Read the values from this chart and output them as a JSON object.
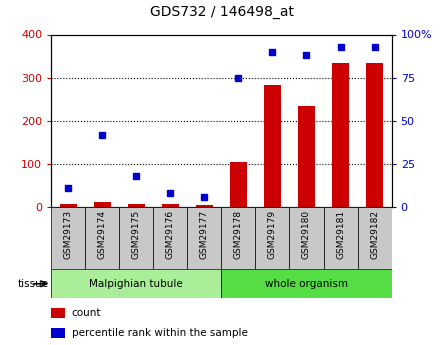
{
  "title": "GDS732 / 146498_at",
  "categories": [
    "GSM29173",
    "GSM29174",
    "GSM29175",
    "GSM29176",
    "GSM29177",
    "GSM29178",
    "GSM29179",
    "GSM29180",
    "GSM29181",
    "GSM29182"
  ],
  "counts": [
    8,
    12,
    8,
    8,
    5,
    105,
    282,
    235,
    335,
    335
  ],
  "percentiles": [
    11,
    42,
    18,
    8,
    6,
    75,
    90,
    88,
    93,
    93
  ],
  "bar_color": "#cc0000",
  "dot_color": "#0000cc",
  "ylim_left": [
    0,
    400
  ],
  "ylim_right": [
    0,
    100
  ],
  "yticks_left": [
    0,
    100,
    200,
    300,
    400
  ],
  "yticks_right": [
    0,
    25,
    50,
    75,
    100
  ],
  "yticklabels_right": [
    "0",
    "25",
    "50",
    "75",
    "100%"
  ],
  "groups": [
    {
      "label": "Malpighian tubule",
      "indices": [
        0,
        1,
        2,
        3,
        4
      ],
      "color": "#aaee99"
    },
    {
      "label": "whole organism",
      "indices": [
        5,
        6,
        7,
        8,
        9
      ],
      "color": "#55dd44"
    }
  ],
  "cell_bg_color": "#cccccc",
  "tissue_label": "tissue",
  "legend_count_label": "count",
  "legend_percentile_label": "percentile rank within the sample",
  "background_color": "#ffffff",
  "tick_label_color_left": "#cc0000",
  "tick_label_color_right": "#0000cc"
}
